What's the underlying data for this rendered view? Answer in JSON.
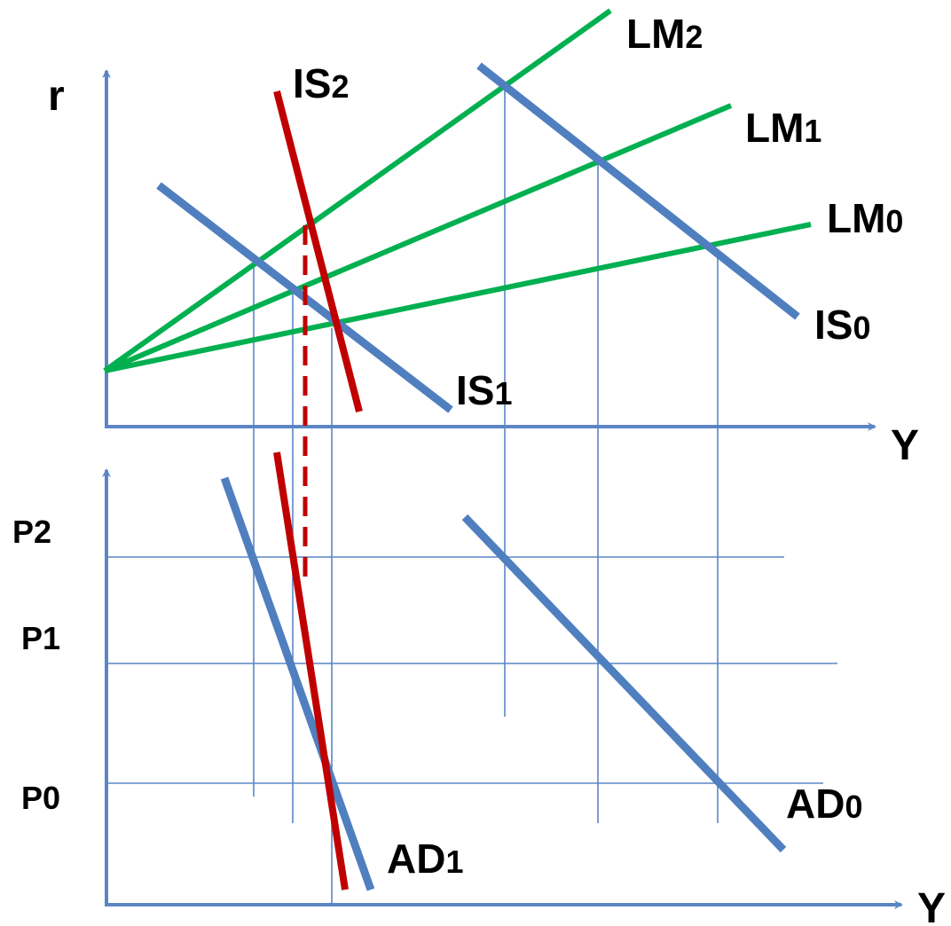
{
  "colors": {
    "axis": "#5b86c6",
    "grid": "#5b86c6",
    "is_ad_curve": "#4f7fbf",
    "lm_curve": "#00b050",
    "shift_curve": "#c00000"
  },
  "top_panel": {
    "y_axis_label": "r",
    "x_axis_label": "Y",
    "curves": {
      "lm2": {
        "base": "LM",
        "sub": "2"
      },
      "lm1": {
        "base": "LM",
        "sub": "1"
      },
      "lm0": {
        "base": "LM",
        "sub": "0"
      },
      "is0": {
        "base": "IS",
        "sub": "0"
      },
      "is1": {
        "base": "IS",
        "sub": "1"
      },
      "is2": {
        "base": "IS",
        "sub": "2"
      }
    }
  },
  "bottom_panel": {
    "x_axis_label": "Y",
    "price_levels": [
      "P2",
      "P1",
      "P0"
    ],
    "curves": {
      "ad0": {
        "base": "AD",
        "sub": "0"
      },
      "ad1": {
        "base": "AD",
        "sub": "1"
      }
    }
  }
}
